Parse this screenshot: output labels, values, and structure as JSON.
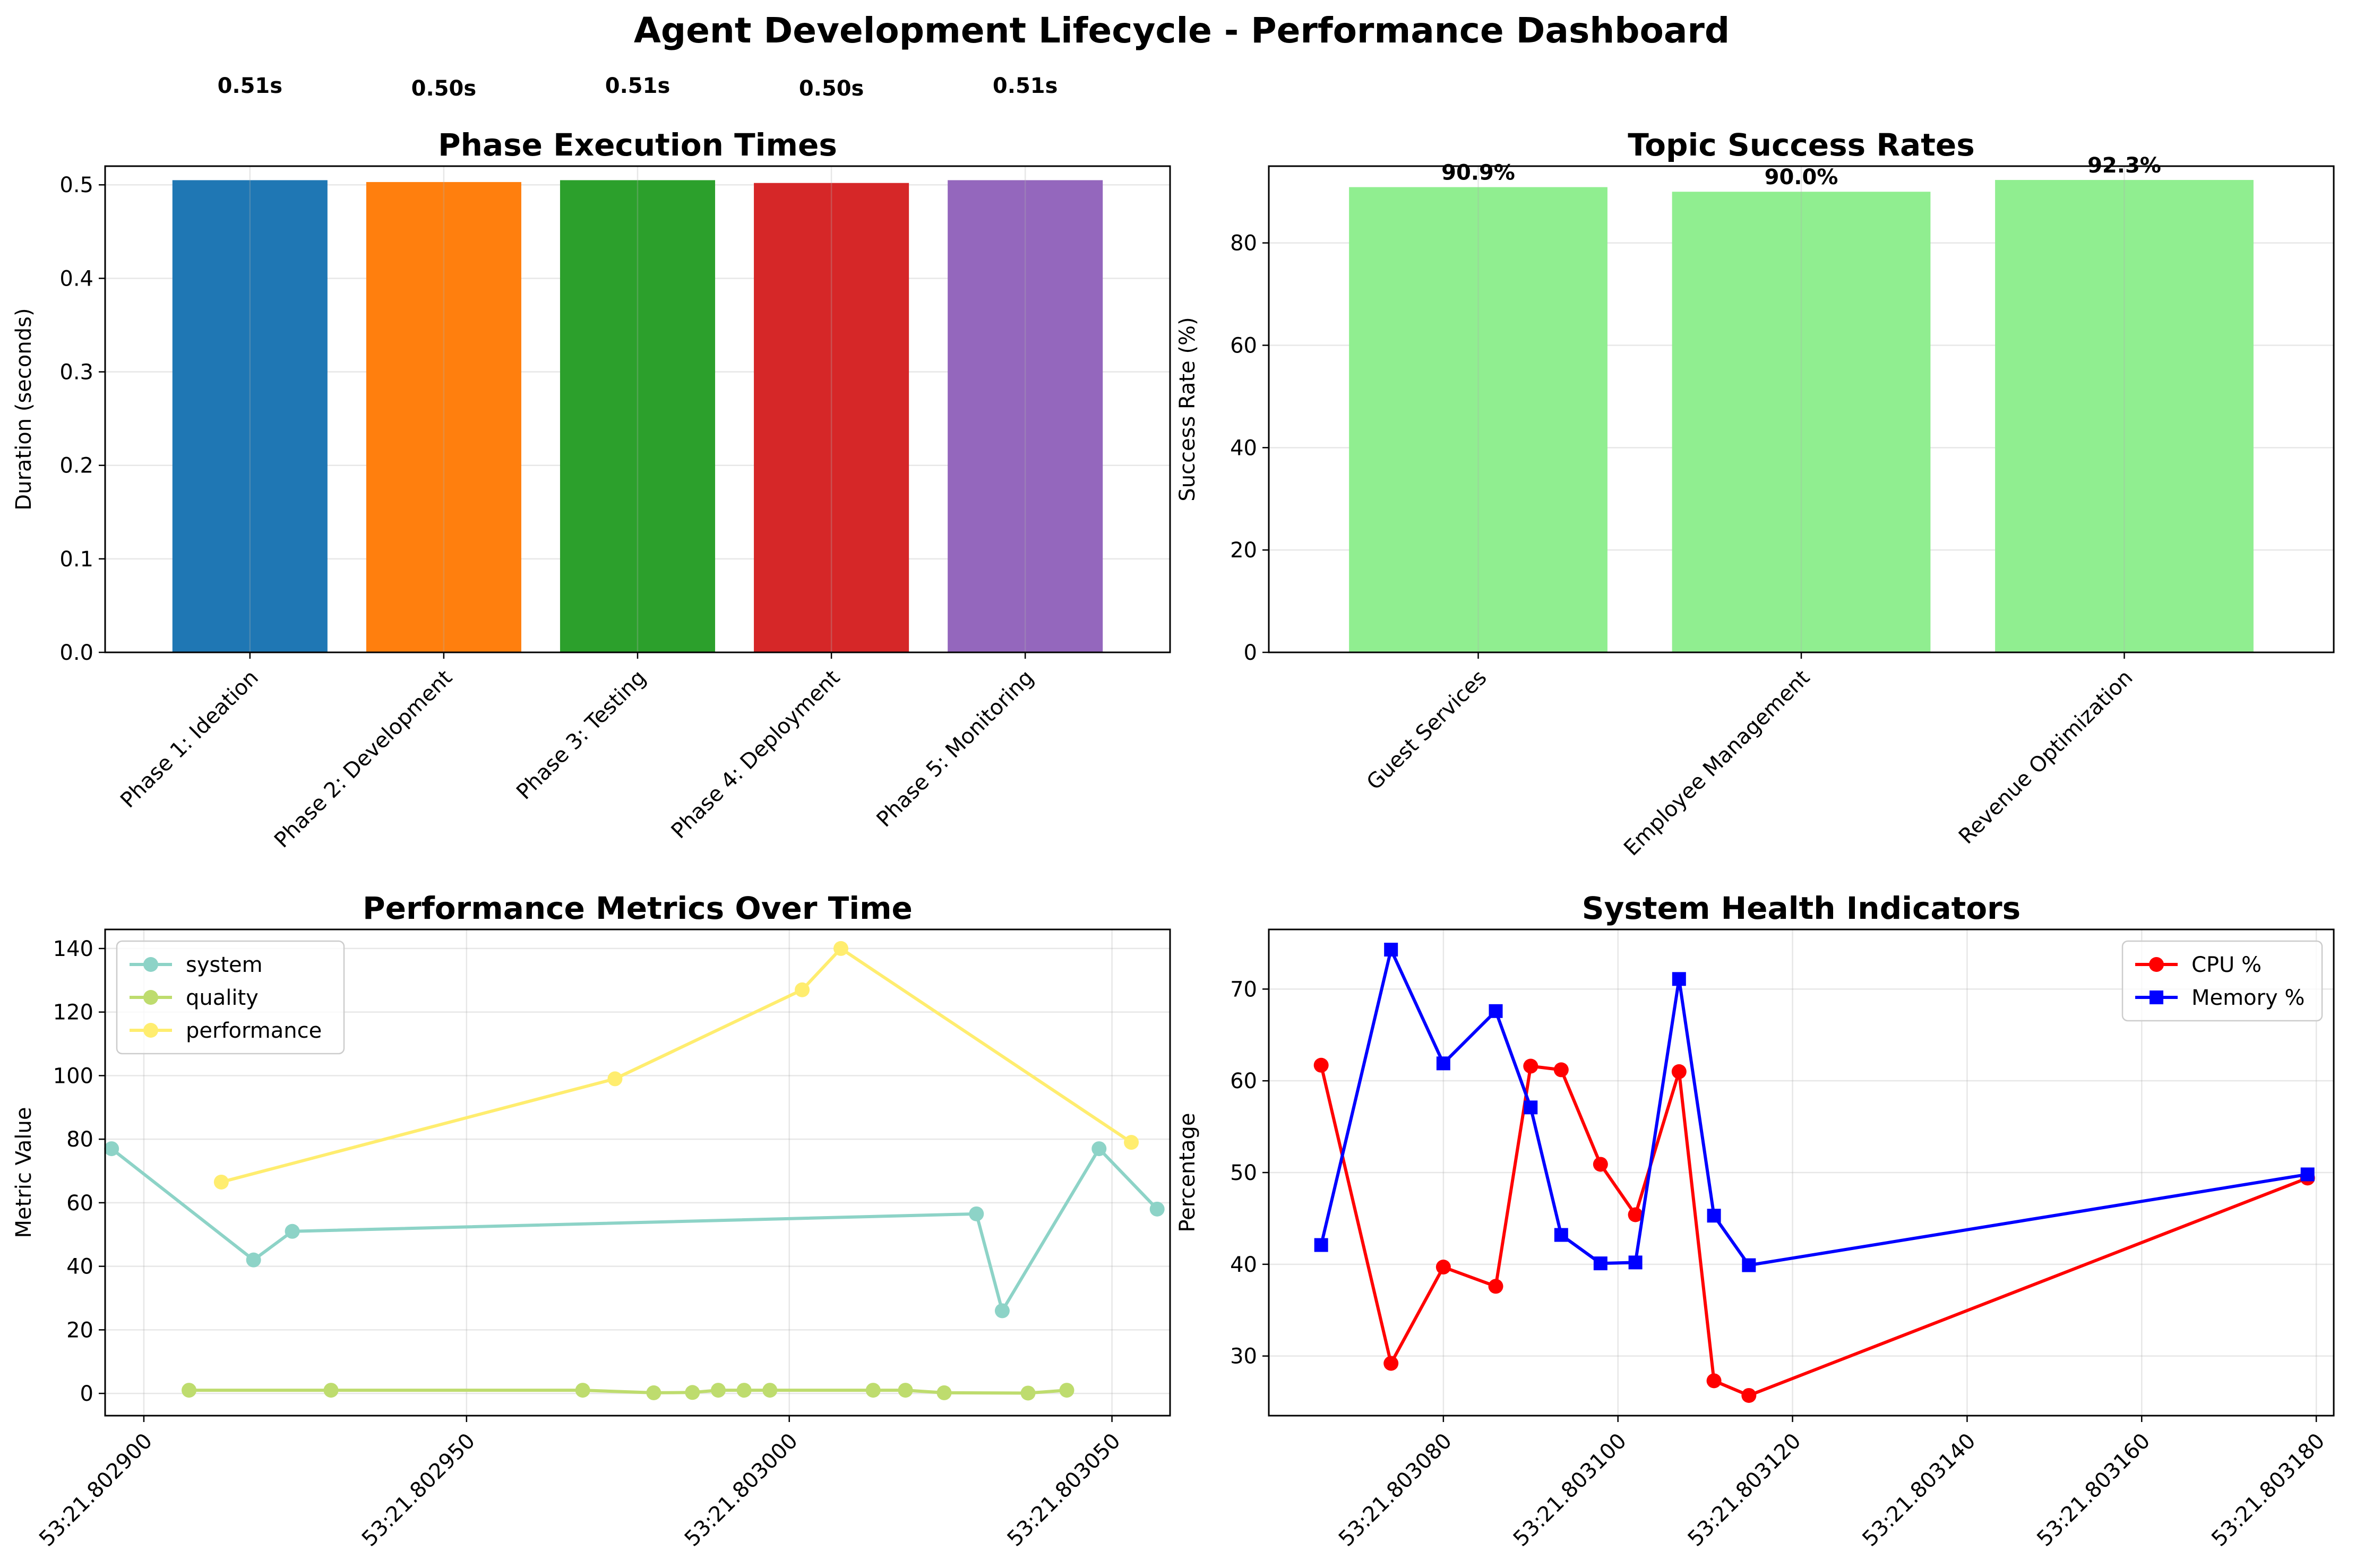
{
  "title": "Agent Development Lifecycle - Performance Dashboard",
  "chart_data": [
    {
      "type": "bar",
      "title": "Phase Execution Times",
      "xlabel": "",
      "ylabel": "Duration (seconds)",
      "ylim": [
        0,
        0.52
      ],
      "yticks": [
        0.0,
        0.1,
        0.2,
        0.3,
        0.4,
        0.5
      ],
      "ytick_labels": [
        "0.0",
        "0.1",
        "0.2",
        "0.3",
        "0.4",
        "0.5"
      ],
      "categories": [
        "Phase 1: Ideation",
        "Phase 2: Development",
        "Phase 3: Testing",
        "Phase 4: Deployment",
        "Phase 5: Monitoring"
      ],
      "values": [
        0.505,
        0.503,
        0.505,
        0.502,
        0.505
      ],
      "data_labels": [
        "0.51s",
        "0.50s",
        "0.51s",
        "0.50s",
        "0.51s"
      ],
      "colors": [
        "#1f77b4",
        "#ff7f0e",
        "#2ca02c",
        "#d62728",
        "#9467bd"
      ],
      "grid": true
    },
    {
      "type": "bar",
      "title": "Topic Success Rates",
      "xlabel": "",
      "ylabel": "Success Rate (%)",
      "ylim": [
        0,
        95
      ],
      "yticks": [
        0,
        20,
        40,
        60,
        80
      ],
      "ytick_labels": [
        "0",
        "20",
        "40",
        "60",
        "80"
      ],
      "categories": [
        "Guest Services",
        "Employee Management",
        "Revenue Optimization"
      ],
      "values": [
        90.9,
        90.0,
        92.3
      ],
      "data_labels": [
        "90.9%",
        "90.0%",
        "92.3%"
      ],
      "colors": [
        "#90ee90",
        "#90ee90",
        "#90ee90"
      ],
      "grid": true
    },
    {
      "type": "line",
      "title": "Performance Metrics Over Time",
      "xlabel": "",
      "ylabel": "Metric Value",
      "xlim": [
        2894,
        3059
      ],
      "ylim": [
        -7,
        146
      ],
      "xticks": [
        2900,
        2950,
        3000,
        3050
      ],
      "xtick_labels": [
        "53:21.802900",
        "53:21.802950",
        "53:21.803000",
        "53:21.803050"
      ],
      "yticks": [
        0,
        20,
        40,
        60,
        80,
        100,
        120,
        140
      ],
      "ytick_labels": [
        "0",
        "20",
        "40",
        "60",
        "80",
        "100",
        "120",
        "140"
      ],
      "legend_position": "top-left",
      "grid": true,
      "series": [
        {
          "name": "system",
          "color": "#8dd3c7",
          "x": [
            2895,
            2917,
            2923,
            3029,
            3033,
            3048,
            3057
          ],
          "y": [
            77,
            42,
            51,
            56.5,
            26,
            77,
            58
          ]
        },
        {
          "name": "quality",
          "color": "#bedc6e",
          "x": [
            2907,
            2929,
            2968,
            2979,
            2985,
            2989,
            2993,
            2997,
            3013,
            3018,
            3024,
            3037,
            3043
          ],
          "y": [
            1,
            1,
            1,
            0.2,
            0.3,
            1,
            1,
            1,
            1,
            1,
            0.2,
            0.1,
            1
          ]
        },
        {
          "name": "performance",
          "color": "#ffed6f",
          "x": [
            2912,
            2973,
            3002,
            3008,
            3053
          ],
          "y": [
            66.5,
            99,
            127,
            140,
            79
          ]
        }
      ]
    },
    {
      "type": "line",
      "title": "System Health Indicators",
      "xlabel": "",
      "ylabel": "Percentage",
      "xlim": [
        3060,
        3182
      ],
      "ylim": [
        23.5,
        76.5
      ],
      "xticks": [
        3080,
        3100,
        3120,
        3140,
        3160,
        3180
      ],
      "xtick_labels": [
        "53:21.803080",
        "53:21.803100",
        "53:21.803120",
        "53:21.803140",
        "53:21.803160",
        "53:21.803180"
      ],
      "yticks": [
        30,
        40,
        50,
        60,
        70
      ],
      "ytick_labels": [
        "30",
        "40",
        "50",
        "60",
        "70"
      ],
      "legend_position": "top-right",
      "grid": true,
      "series": [
        {
          "name": "CPU %",
          "color": "#ff0000",
          "marker": "circle",
          "x": [
            3066,
            3074,
            3080,
            3086,
            3090,
            3093.5,
            3098,
            3102,
            3107,
            3111,
            3115,
            3179
          ],
          "y": [
            61.7,
            29.2,
            39.7,
            37.6,
            61.6,
            61.2,
            50.9,
            45.4,
            61,
            27.3,
            25.7,
            49.4
          ]
        },
        {
          "name": "Memory %",
          "color": "#0000ff",
          "marker": "square",
          "x": [
            3066,
            3074,
            3080,
            3086,
            3090,
            3093.5,
            3098,
            3102,
            3107,
            3111,
            3115,
            3179
          ],
          "y": [
            42.1,
            74.3,
            61.9,
            67.6,
            57.1,
            43.2,
            40.1,
            40.2,
            71.1,
            45.3,
            39.9,
            49.8
          ]
        }
      ]
    }
  ]
}
